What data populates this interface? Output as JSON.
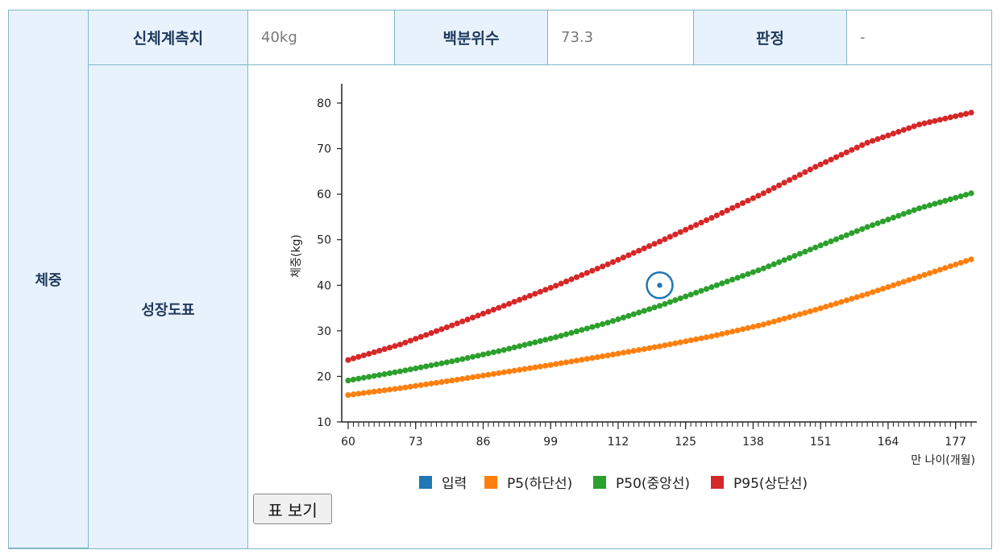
{
  "table": {
    "row_header": "체중",
    "measure_label": "신체계측치",
    "measure_value": "40kg",
    "percentile_label": "백분위수",
    "percentile_value": "73.3",
    "judgement_label": "판정",
    "judgement_value": "-",
    "chart_label": "성장도표"
  },
  "toggle_button": "표 보기",
  "chart_data": {
    "type": "line",
    "ylabel": "체중(kg)",
    "xlabel": "만 나이(개월)",
    "xlim": [
      60,
      180
    ],
    "ylim": [
      10,
      84
    ],
    "x_ticks": [
      60,
      73,
      86,
      99,
      112,
      125,
      138,
      151,
      164,
      177
    ],
    "y_ticks": [
      10,
      20,
      30,
      40,
      50,
      60,
      70,
      80
    ],
    "legend": [
      {
        "name": "입력",
        "color": "#1f77b4"
      },
      {
        "name": "P5(하단선)",
        "color": "#ff7f0e"
      },
      {
        "name": "P50(중앙선)",
        "color": "#2ca02c"
      },
      {
        "name": "P95(상단선)",
        "color": "#d62728"
      }
    ],
    "input_point": {
      "x": 120,
      "y": 40
    },
    "series": [
      {
        "name": "P5(하단선)",
        "color": "#ff7f0e",
        "x": [
          60,
          70,
          80,
          90,
          100,
          110,
          120,
          130,
          140,
          150,
          160,
          170,
          180
        ],
        "values": [
          15.9,
          17.4,
          19.1,
          20.9,
          22.7,
          24.6,
          26.6,
          28.8,
          31.4,
          34.6,
          38.1,
          41.9,
          45.7
        ]
      },
      {
        "name": "P50(중앙선)",
        "color": "#2ca02c",
        "x": [
          60,
          70,
          80,
          90,
          100,
          110,
          120,
          130,
          140,
          150,
          160,
          170,
          180
        ],
        "values": [
          19.1,
          21.1,
          23.3,
          25.8,
          28.6,
          31.8,
          35.5,
          39.6,
          43.7,
          48.3,
          52.8,
          56.9,
          60.2
        ]
      },
      {
        "name": "P95(상단선)",
        "color": "#d62728",
        "x": [
          60,
          70,
          80,
          90,
          100,
          110,
          120,
          130,
          140,
          150,
          160,
          170,
          180
        ],
        "values": [
          23.6,
          27.0,
          31.2,
          35.5,
          39.9,
          44.6,
          49.6,
          54.8,
          60.2,
          66.0,
          71.3,
          75.3,
          77.9
        ]
      }
    ]
  }
}
